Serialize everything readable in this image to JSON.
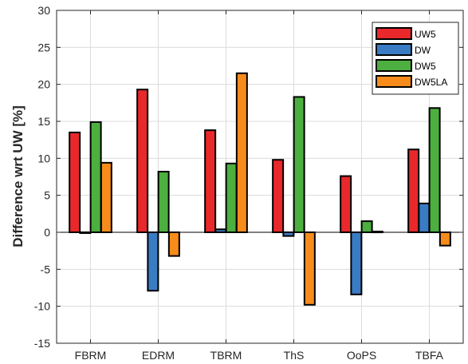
{
  "chart_data": {
    "type": "bar",
    "title": "",
    "xlabel": "",
    "ylabel": "Difference wrt UW [%]",
    "categories": [
      "FBRM",
      "EDRM",
      "TBRM",
      "ThS",
      "OoPS",
      "TBFA"
    ],
    "yticks": [
      -15,
      -10,
      -5,
      0,
      5,
      10,
      15,
      20,
      25,
      30
    ],
    "ylim": [
      -15,
      30
    ],
    "grid": true,
    "legend_position": "top-right",
    "series": [
      {
        "name": "UW5",
        "color": "#e8282b",
        "values": [
          13.5,
          19.3,
          13.8,
          9.8,
          7.6,
          11.2
        ]
      },
      {
        "name": "DW",
        "color": "#3a7cc4",
        "values": [
          -0.1,
          -7.9,
          0.4,
          -0.5,
          -8.4,
          3.9
        ]
      },
      {
        "name": "DW5",
        "color": "#4caf3f",
        "values": [
          14.9,
          8.2,
          9.3,
          18.3,
          1.5,
          16.8
        ]
      },
      {
        "name": "DW5LA",
        "color": "#f78b1b",
        "values": [
          9.4,
          -3.2,
          21.5,
          -9.8,
          0.1,
          -1.8
        ]
      }
    ]
  }
}
